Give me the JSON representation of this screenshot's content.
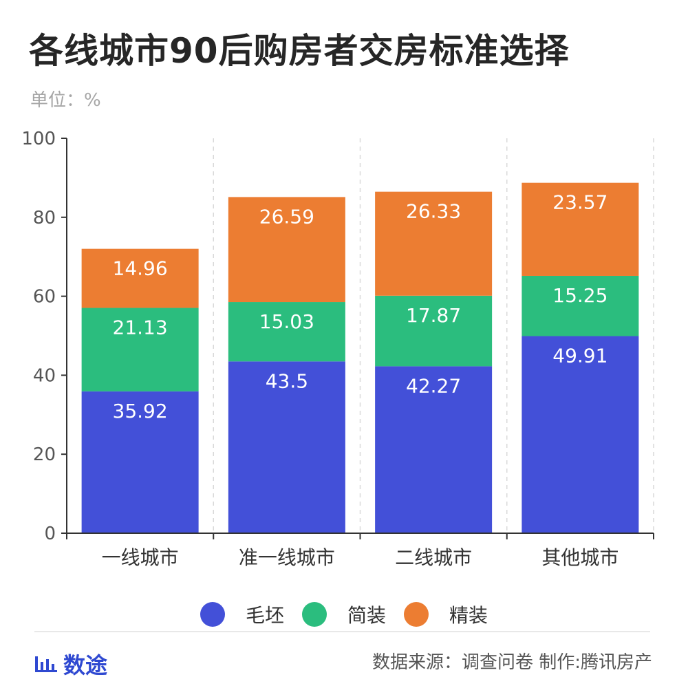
{
  "title": "各线城市90后购房者交房标准选择",
  "unit": "单位：%",
  "chart_data": {
    "type": "bar",
    "stacked": true,
    "categories": [
      "一线城市",
      "准一线城市",
      "二线城市",
      "其他城市"
    ],
    "series": [
      {
        "name": "毛坯",
        "color": "#4350d8",
        "values": [
          35.92,
          43.5,
          42.27,
          49.91
        ]
      },
      {
        "name": "简装",
        "color": "#2bbd7e",
        "values": [
          21.13,
          15.03,
          17.87,
          15.25
        ]
      },
      {
        "name": "精装",
        "color": "#ec7d32",
        "values": [
          14.96,
          26.59,
          26.33,
          23.57
        ]
      }
    ],
    "ylim": [
      0,
      100
    ],
    "yticks": [
      0,
      20,
      40,
      60,
      80,
      100
    ],
    "grid": "vertical-dashed",
    "legend_position": "bottom"
  },
  "brand": {
    "icon": "bar-chart-icon",
    "name": "数途"
  },
  "footer": {
    "source": "数据来源：调查问卷 制作:腾讯房产"
  }
}
